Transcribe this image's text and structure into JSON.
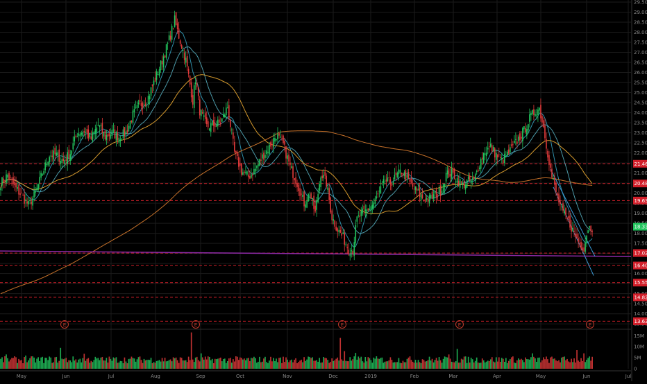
{
  "theme": {
    "background": "#000000",
    "grid": "#1b1b1b",
    "up": "#22c55e",
    "down": "#e03a3a",
    "axis_text": "#8a8a8a",
    "hline": "#d21f2a",
    "ma_short": "#2e8ea8",
    "ma_mid": "#4c9aa8",
    "ma_long": "#d69a2d",
    "ma_200": "#c8722a",
    "trendline": "#8e2aa8",
    "channel": "#3a9ad6"
  },
  "chart_data": [
    {
      "type": "candlestick",
      "title": "",
      "price_range": [
        13.3,
        29.5
      ],
      "months": [
        "May",
        "Jun",
        "Jul",
        "Aug",
        "Sep",
        "Oct",
        "Nov",
        "Dec",
        "2019",
        "Feb",
        "Mar",
        "Apr",
        "May",
        "Jun",
        "Jul"
      ],
      "price_ticks": [
        "29.50",
        "29.00",
        "28.50",
        "28.00",
        "27.50",
        "27.00",
        "26.50",
        "26.00",
        "25.50",
        "25.00",
        "24.50",
        "24.00",
        "23.50",
        "23.00",
        "22.50",
        "22.00",
        "21.50",
        "21.00",
        "20.50",
        "20.00",
        "19.50",
        "19.00",
        "18.50",
        "18.00",
        "17.50",
        "17.00",
        "16.50",
        "16.00",
        "15.50",
        "15.00",
        "14.50",
        "14.00",
        "13.50"
      ],
      "price_labels": [
        {
          "text": "21.46",
          "value": 21.46,
          "color": "#d21f2a"
        },
        {
          "text": "20.48",
          "value": 20.48,
          "color": "#d21f2a"
        },
        {
          "text": "19.63",
          "value": 19.63,
          "color": "#d21f2a"
        },
        {
          "text": "18.33",
          "value": 18.33,
          "color": "#22c55e"
        },
        {
          "text": "17.02",
          "value": 17.02,
          "color": "#d21f2a"
        },
        {
          "text": "16.40",
          "value": 16.4,
          "color": "#d21f2a"
        },
        {
          "text": "15.55",
          "value": 15.55,
          "color": "#d21f2a"
        },
        {
          "text": "14.82",
          "value": 14.82,
          "color": "#d21f2a"
        },
        {
          "text": "13.63",
          "value": 13.63,
          "color": "#d21f2a"
        }
      ],
      "horizontal_lines": [
        21.46,
        20.48,
        19.63,
        17.02,
        16.4,
        15.55,
        14.82,
        13.63
      ],
      "earnings_markers": [
        "E",
        "E",
        "E",
        "E",
        "E"
      ],
      "price_anchors": [
        [
          0,
          20.5
        ],
        [
          5,
          20.9
        ],
        [
          10,
          20.3
        ],
        [
          15,
          19.9
        ],
        [
          20,
          19.4
        ],
        [
          25,
          20.0
        ],
        [
          30,
          21.0
        ],
        [
          35,
          21.9
        ],
        [
          40,
          21.9
        ],
        [
          45,
          21.6
        ],
        [
          50,
          22.0
        ],
        [
          55,
          23.0
        ],
        [
          60,
          23.1
        ],
        [
          65,
          22.7
        ],
        [
          70,
          23.4
        ],
        [
          75,
          22.8
        ],
        [
          80,
          23.0
        ],
        [
          85,
          22.8
        ],
        [
          90,
          23.0
        ],
        [
          95,
          23.9
        ],
        [
          100,
          24.4
        ],
        [
          105,
          24.6
        ],
        [
          110,
          25.5
        ],
        [
          115,
          26.4
        ],
        [
          120,
          27.4
        ],
        [
          125,
          28.6
        ],
        [
          128,
          27.8
        ],
        [
          133,
          26.6
        ],
        [
          138,
          24.6
        ],
        [
          140,
          25.7
        ],
        [
          143,
          24.1
        ],
        [
          148,
          23.3
        ],
        [
          153,
          23.4
        ],
        [
          158,
          23.5
        ],
        [
          163,
          24.3
        ],
        [
          168,
          22.0
        ],
        [
          173,
          21.1
        ],
        [
          178,
          20.8
        ],
        [
          183,
          21.2
        ],
        [
          188,
          21.8
        ],
        [
          193,
          22.3
        ],
        [
          198,
          22.9
        ],
        [
          203,
          22.4
        ],
        [
          208,
          21.3
        ],
        [
          213,
          20.5
        ],
        [
          218,
          19.5
        ],
        [
          222,
          20.0
        ],
        [
          226,
          19.0
        ],
        [
          230,
          21.0
        ],
        [
          234,
          20.5
        ],
        [
          238,
          18.8
        ],
        [
          242,
          18.2
        ],
        [
          246,
          17.8
        ],
        [
          250,
          17.2
        ],
        [
          253,
          17.2
        ],
        [
          256,
          18.7
        ],
        [
          260,
          19.0
        ],
        [
          264,
          19.2
        ],
        [
          268,
          19.5
        ],
        [
          272,
          20.0
        ],
        [
          276,
          20.6
        ],
        [
          280,
          20.5
        ],
        [
          284,
          20.8
        ],
        [
          288,
          21.1
        ],
        [
          292,
          20.7
        ],
        [
          296,
          20.3
        ],
        [
          300,
          20.0
        ],
        [
          304,
          19.7
        ],
        [
          308,
          19.7
        ],
        [
          312,
          19.9
        ],
        [
          316,
          20.1
        ],
        [
          320,
          20.9
        ],
        [
          324,
          21.0
        ],
        [
          328,
          20.7
        ],
        [
          332,
          20.4
        ],
        [
          336,
          20.6
        ],
        [
          340,
          20.6
        ],
        [
          344,
          21.5
        ],
        [
          348,
          22.1
        ],
        [
          352,
          22.3
        ],
        [
          356,
          21.9
        ],
        [
          360,
          21.6
        ],
        [
          364,
          21.9
        ],
        [
          368,
          22.3
        ],
        [
          372,
          22.7
        ],
        [
          376,
          23.1
        ],
        [
          380,
          23.7
        ],
        [
          384,
          24.1
        ],
        [
          387,
          24.2
        ],
        [
          390,
          23.3
        ],
        [
          393,
          22.0
        ],
        [
          396,
          20.8
        ],
        [
          400,
          19.8
        ],
        [
          404,
          19.0
        ],
        [
          408,
          18.6
        ],
        [
          412,
          18.0
        ],
        [
          416,
          17.5
        ],
        [
          419,
          17.3
        ],
        [
          422,
          18.3
        ]
      ],
      "volume_range": [
        0,
        17
      ],
      "volume_ticks": [
        "15M",
        "10M",
        "5M",
        "0"
      ],
      "volume_spikes": [
        {
          "bar": 4,
          "value": 6.5
        },
        {
          "bar": 18,
          "value": 6.0
        },
        {
          "bar": 43,
          "value": 9.5
        },
        {
          "bar": 60,
          "value": 6.8
        },
        {
          "bar": 137,
          "value": 16.5
        },
        {
          "bar": 144,
          "value": 7.0
        },
        {
          "bar": 244,
          "value": 14.0
        },
        {
          "bar": 247,
          "value": 8.0
        },
        {
          "bar": 255,
          "value": 7.2
        },
        {
          "bar": 322,
          "value": 6.5
        },
        {
          "bar": 328,
          "value": 9.0
        },
        {
          "bar": 382,
          "value": 7.0
        },
        {
          "bar": 414,
          "value": 8.5
        },
        {
          "bar": 419,
          "value": 7.0
        }
      ]
    }
  ]
}
